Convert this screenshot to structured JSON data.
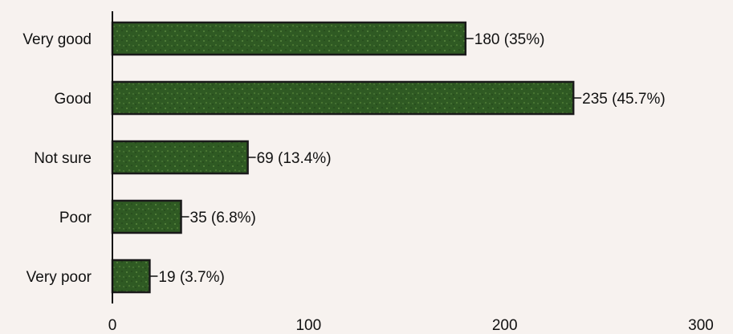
{
  "chart_data": {
    "type": "bar",
    "orientation": "horizontal",
    "categories": [
      "Very good",
      "Good",
      "Not sure",
      "Poor",
      "Very poor"
    ],
    "values": [
      180,
      235,
      69,
      35,
      19
    ],
    "data_labels": [
      "180 (35%)",
      "235 (45.7%)",
      "69 (13.4%)",
      "35 (6.8%)",
      "19 (3.7%)"
    ],
    "xlim": [
      0,
      300
    ],
    "xticks": [
      0,
      100,
      200,
      300
    ],
    "xtick_labels": [
      "0",
      "100",
      "200",
      "300"
    ],
    "bar_color": "#2f5a23",
    "grid": false,
    "legend": "none"
  }
}
